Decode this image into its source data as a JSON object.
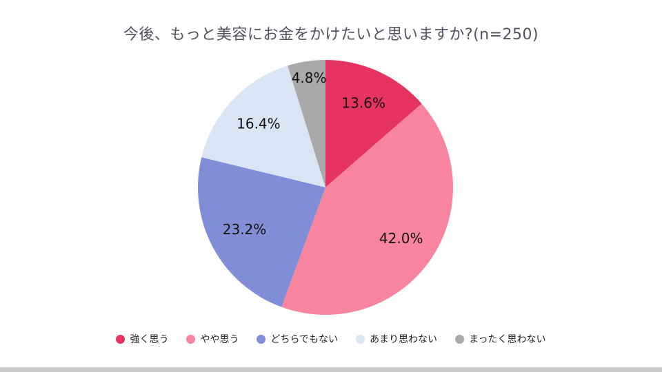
{
  "title": "今後、もっと美容にお金をかけたいと思いますか?(n=250)",
  "chart_data": {
    "type": "pie",
    "title": "今後、もっと美容にお金をかけたいと思いますか?(n=250)",
    "n": 250,
    "categories": [
      "強く思う",
      "やや思う",
      "どちらでもない",
      "あまり思わない",
      "まったく思わない"
    ],
    "values": [
      13.6,
      42.0,
      23.2,
      16.4,
      4.8
    ],
    "labels": [
      "13.6%",
      "42.0%",
      "23.2%",
      "16.4%",
      "4.8%"
    ],
    "unit": "%",
    "colors": [
      "#e73360",
      "#f8849f",
      "#7f8ed6",
      "#d9e5f5",
      "#a9a9a9"
    ],
    "start_angle_deg": 0,
    "direction": "clockwise",
    "legend_position": "bottom"
  }
}
